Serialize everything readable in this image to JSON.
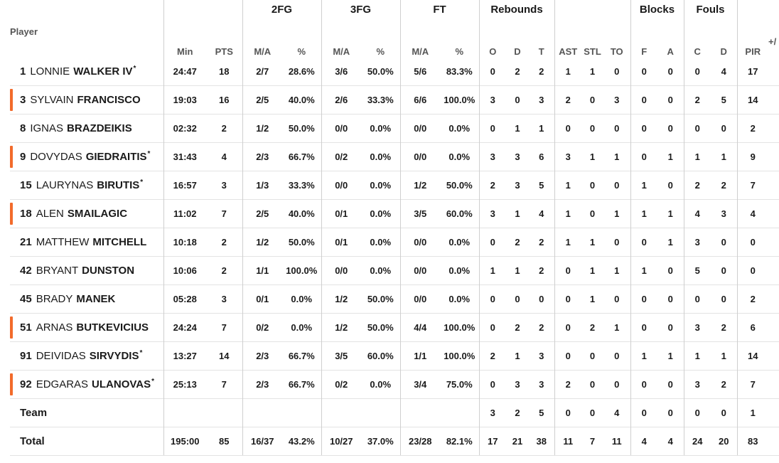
{
  "header": {
    "player_label": "Player",
    "groups": {
      "fg2": "2FG",
      "fg3": "3FG",
      "ft": "FT",
      "rebounds": "Rebounds",
      "blocks": "Blocks",
      "fouls": "Fouls"
    },
    "cols": {
      "min": "Min",
      "pts": "PTS",
      "fg2_ma": "M/A",
      "fg2_pct": "%",
      "fg3_ma": "M/A",
      "fg3_pct": "%",
      "ft_ma": "M/A",
      "ft_pct": "%",
      "reb_o": "O",
      "reb_d": "D",
      "reb_t": "T",
      "ast": "AST",
      "stl": "STL",
      "to": "TO",
      "blk_f": "F",
      "blk_a": "A",
      "foul_c": "C",
      "foul_d": "D",
      "pir": "PIR",
      "pm": "+/"
    }
  },
  "accent_color": "#f26b2b",
  "players": [
    {
      "num": "1",
      "first": "LONNIE",
      "last": "WALKER IV",
      "star": "*",
      "bar": false,
      "min": "24:47",
      "pts": "18",
      "fg2_ma": "2/7",
      "fg2_pct": "28.6%",
      "fg3_ma": "3/6",
      "fg3_pct": "50.0%",
      "ft_ma": "5/6",
      "ft_pct": "83.3%",
      "reb_o": "0",
      "reb_d": "2",
      "reb_t": "2",
      "ast": "1",
      "stl": "1",
      "to": "0",
      "blk_f": "0",
      "blk_a": "0",
      "foul_c": "0",
      "foul_d": "4",
      "pir": "17"
    },
    {
      "num": "3",
      "first": "SYLVAIN",
      "last": "FRANCISCO",
      "star": "",
      "bar": true,
      "min": "19:03",
      "pts": "16",
      "fg2_ma": "2/5",
      "fg2_pct": "40.0%",
      "fg3_ma": "2/6",
      "fg3_pct": "33.3%",
      "ft_ma": "6/6",
      "ft_pct": "100.0%",
      "reb_o": "3",
      "reb_d": "0",
      "reb_t": "3",
      "ast": "2",
      "stl": "0",
      "to": "3",
      "blk_f": "0",
      "blk_a": "0",
      "foul_c": "2",
      "foul_d": "5",
      "pir": "14"
    },
    {
      "num": "8",
      "first": "IGNAS",
      "last": "BRAZDEIKIS",
      "star": "",
      "bar": false,
      "min": "02:32",
      "pts": "2",
      "fg2_ma": "1/2",
      "fg2_pct": "50.0%",
      "fg3_ma": "0/0",
      "fg3_pct": "0.0%",
      "ft_ma": "0/0",
      "ft_pct": "0.0%",
      "reb_o": "0",
      "reb_d": "1",
      "reb_t": "1",
      "ast": "0",
      "stl": "0",
      "to": "0",
      "blk_f": "0",
      "blk_a": "0",
      "foul_c": "0",
      "foul_d": "0",
      "pir": "2"
    },
    {
      "num": "9",
      "first": "DOVYDAS",
      "last": "GIEDRAITIS",
      "star": "*",
      "bar": true,
      "min": "31:43",
      "pts": "4",
      "fg2_ma": "2/3",
      "fg2_pct": "66.7%",
      "fg3_ma": "0/2",
      "fg3_pct": "0.0%",
      "ft_ma": "0/0",
      "ft_pct": "0.0%",
      "reb_o": "3",
      "reb_d": "3",
      "reb_t": "6",
      "ast": "3",
      "stl": "1",
      "to": "1",
      "blk_f": "0",
      "blk_a": "1",
      "foul_c": "1",
      "foul_d": "1",
      "pir": "9"
    },
    {
      "num": "15",
      "first": "LAURYNAS",
      "last": "BIRUTIS",
      "star": "*",
      "bar": false,
      "min": "16:57",
      "pts": "3",
      "fg2_ma": "1/3",
      "fg2_pct": "33.3%",
      "fg3_ma": "0/0",
      "fg3_pct": "0.0%",
      "ft_ma": "1/2",
      "ft_pct": "50.0%",
      "reb_o": "2",
      "reb_d": "3",
      "reb_t": "5",
      "ast": "1",
      "stl": "0",
      "to": "0",
      "blk_f": "1",
      "blk_a": "0",
      "foul_c": "2",
      "foul_d": "2",
      "pir": "7"
    },
    {
      "num": "18",
      "first": "ALEN",
      "last": "SMAILAGIC",
      "star": "",
      "bar": true,
      "min": "11:02",
      "pts": "7",
      "fg2_ma": "2/5",
      "fg2_pct": "40.0%",
      "fg3_ma": "0/1",
      "fg3_pct": "0.0%",
      "ft_ma": "3/5",
      "ft_pct": "60.0%",
      "reb_o": "3",
      "reb_d": "1",
      "reb_t": "4",
      "ast": "1",
      "stl": "0",
      "to": "1",
      "blk_f": "1",
      "blk_a": "1",
      "foul_c": "4",
      "foul_d": "3",
      "pir": "4"
    },
    {
      "num": "21",
      "first": "MATTHEW",
      "last": "MITCHELL",
      "star": "",
      "bar": false,
      "min": "10:18",
      "pts": "2",
      "fg2_ma": "1/2",
      "fg2_pct": "50.0%",
      "fg3_ma": "0/1",
      "fg3_pct": "0.0%",
      "ft_ma": "0/0",
      "ft_pct": "0.0%",
      "reb_o": "0",
      "reb_d": "2",
      "reb_t": "2",
      "ast": "1",
      "stl": "1",
      "to": "0",
      "blk_f": "0",
      "blk_a": "1",
      "foul_c": "3",
      "foul_d": "0",
      "pir": "0"
    },
    {
      "num": "42",
      "first": "BRYANT",
      "last": "DUNSTON",
      "star": "",
      "bar": false,
      "min": "10:06",
      "pts": "2",
      "fg2_ma": "1/1",
      "fg2_pct": "100.0%",
      "fg3_ma": "0/0",
      "fg3_pct": "0.0%",
      "ft_ma": "0/0",
      "ft_pct": "0.0%",
      "reb_o": "1",
      "reb_d": "1",
      "reb_t": "2",
      "ast": "0",
      "stl": "1",
      "to": "1",
      "blk_f": "1",
      "blk_a": "0",
      "foul_c": "5",
      "foul_d": "0",
      "pir": "0"
    },
    {
      "num": "45",
      "first": "BRADY",
      "last": "MANEK",
      "star": "",
      "bar": false,
      "min": "05:28",
      "pts": "3",
      "fg2_ma": "0/1",
      "fg2_pct": "0.0%",
      "fg3_ma": "1/2",
      "fg3_pct": "50.0%",
      "ft_ma": "0/0",
      "ft_pct": "0.0%",
      "reb_o": "0",
      "reb_d": "0",
      "reb_t": "0",
      "ast": "0",
      "stl": "1",
      "to": "0",
      "blk_f": "0",
      "blk_a": "0",
      "foul_c": "0",
      "foul_d": "0",
      "pir": "2"
    },
    {
      "num": "51",
      "first": "ARNAS",
      "last": "BUTKEVICIUS",
      "star": "",
      "bar": true,
      "min": "24:24",
      "pts": "7",
      "fg2_ma": "0/2",
      "fg2_pct": "0.0%",
      "fg3_ma": "1/2",
      "fg3_pct": "50.0%",
      "ft_ma": "4/4",
      "ft_pct": "100.0%",
      "reb_o": "0",
      "reb_d": "2",
      "reb_t": "2",
      "ast": "0",
      "stl": "2",
      "to": "1",
      "blk_f": "0",
      "blk_a": "0",
      "foul_c": "3",
      "foul_d": "2",
      "pir": "6"
    },
    {
      "num": "91",
      "first": "DEIVIDAS",
      "last": "SIRVYDIS",
      "star": "*",
      "bar": false,
      "min": "13:27",
      "pts": "14",
      "fg2_ma": "2/3",
      "fg2_pct": "66.7%",
      "fg3_ma": "3/5",
      "fg3_pct": "60.0%",
      "ft_ma": "1/1",
      "ft_pct": "100.0%",
      "reb_o": "2",
      "reb_d": "1",
      "reb_t": "3",
      "ast": "0",
      "stl": "0",
      "to": "0",
      "blk_f": "1",
      "blk_a": "1",
      "foul_c": "1",
      "foul_d": "1",
      "pir": "14"
    },
    {
      "num": "92",
      "first": "EDGARAS",
      "last": "ULANOVAS",
      "star": "*",
      "bar": true,
      "min": "25:13",
      "pts": "7",
      "fg2_ma": "2/3",
      "fg2_pct": "66.7%",
      "fg3_ma": "0/2",
      "fg3_pct": "0.0%",
      "ft_ma": "3/4",
      "ft_pct": "75.0%",
      "reb_o": "0",
      "reb_d": "3",
      "reb_t": "3",
      "ast": "2",
      "stl": "0",
      "to": "0",
      "blk_f": "0",
      "blk_a": "0",
      "foul_c": "3",
      "foul_d": "2",
      "pir": "7"
    }
  ],
  "team": {
    "label": "Team",
    "min": "",
    "pts": "",
    "fg2_ma": "",
    "fg2_pct": "",
    "fg3_ma": "",
    "fg3_pct": "",
    "ft_ma": "",
    "ft_pct": "",
    "reb_o": "3",
    "reb_d": "2",
    "reb_t": "5",
    "ast": "0",
    "stl": "0",
    "to": "4",
    "blk_f": "0",
    "blk_a": "0",
    "foul_c": "0",
    "foul_d": "0",
    "pir": "1"
  },
  "total": {
    "label": "Total",
    "min": "195:00",
    "pts": "85",
    "fg2_ma": "16/37",
    "fg2_pct": "43.2%",
    "fg3_ma": "10/27",
    "fg3_pct": "37.0%",
    "ft_ma": "23/28",
    "ft_pct": "82.1%",
    "reb_o": "17",
    "reb_d": "21",
    "reb_t": "38",
    "ast": "11",
    "stl": "7",
    "to": "11",
    "blk_f": "4",
    "blk_a": "4",
    "foul_c": "24",
    "foul_d": "20",
    "pir": "83"
  }
}
